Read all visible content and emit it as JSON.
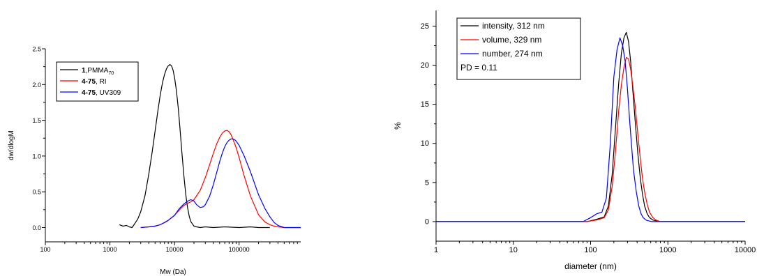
{
  "chart_data": [
    {
      "type": "line",
      "title": "",
      "xlabel": "Mw (Da)",
      "ylabel": "dw/dlogM",
      "xscale": "log",
      "xlim": [
        100,
        900000
      ],
      "ylim": [
        -0.2,
        2.5
      ],
      "x_ticks": [
        "100",
        "1000",
        "10000",
        "100000"
      ],
      "y_ticks": [
        "0.0",
        "0.5",
        "1.0",
        "1.5",
        "2.0",
        "2.5"
      ],
      "grid": false,
      "legend_position": "top-left",
      "legend": [
        {
          "bold": "1",
          "text": ",PMMA",
          "sub": "70"
        },
        {
          "bold": "4-75",
          "text": ", RI",
          "sub": ""
        },
        {
          "bold": "4-75",
          "text": ", UV309",
          "sub": ""
        }
      ],
      "series": [
        {
          "color": "#000000",
          "x": [
            1400,
            1600,
            1800,
            2000,
            2200,
            2400,
            2700,
            3000,
            3500,
            4000,
            4500,
            5000,
            5500,
            6000,
            6500,
            7000,
            7500,
            8000,
            8500,
            9000,
            9500,
            10000,
            10500,
            11000,
            11500,
            12000,
            12500,
            13000,
            14000,
            15000,
            16000,
            17000,
            18000,
            20000,
            22000,
            25000,
            30000,
            40000,
            60000,
            100000,
            150000,
            200000,
            300000
          ],
          "y": [
            0.04,
            0.02,
            0.03,
            0.01,
            0.0,
            0.05,
            0.12,
            0.22,
            0.45,
            0.75,
            1.05,
            1.35,
            1.62,
            1.85,
            2.02,
            2.14,
            2.22,
            2.26,
            2.28,
            2.26,
            2.2,
            2.1,
            1.97,
            1.82,
            1.65,
            1.45,
            1.25,
            1.05,
            0.72,
            0.45,
            0.27,
            0.15,
            0.08,
            0.02,
            0.01,
            0.0,
            0.01,
            0.0,
            0.01,
            0.0,
            0.01,
            0.0,
            0.0
          ]
        },
        {
          "color": "#ff0000",
          "x": [
            3000,
            4000,
            5000,
            6000,
            7000,
            8000,
            10000,
            12000,
            14000,
            16000,
            18000,
            20000,
            25000,
            30000,
            35000,
            40000,
            45000,
            50000,
            55000,
            60000,
            65000,
            70000,
            75000,
            80000,
            90000,
            100000,
            120000,
            150000,
            200000,
            250000,
            300000,
            350000,
            400000,
            500000,
            700000,
            900000
          ],
          "y": [
            0.0,
            0.01,
            0.02,
            0.04,
            0.07,
            0.1,
            0.17,
            0.25,
            0.31,
            0.34,
            0.36,
            0.39,
            0.52,
            0.7,
            0.88,
            1.04,
            1.17,
            1.26,
            1.32,
            1.35,
            1.36,
            1.34,
            1.3,
            1.24,
            1.12,
            0.98,
            0.72,
            0.44,
            0.18,
            0.08,
            0.04,
            0.02,
            0.01,
            0.0,
            0.0,
            0.0
          ]
        },
        {
          "color": "#0000ff",
          "x": [
            3000,
            4000,
            5000,
            6000,
            7000,
            8000,
            10000,
            12000,
            14000,
            16000,
            18000,
            20000,
            22000,
            25000,
            28000,
            30000,
            35000,
            40000,
            45000,
            50000,
            55000,
            60000,
            65000,
            70000,
            75000,
            80000,
            85000,
            90000,
            100000,
            120000,
            150000,
            200000,
            250000,
            300000,
            350000,
            400000,
            500000,
            700000,
            900000
          ],
          "y": [
            0.0,
            0.01,
            0.02,
            0.04,
            0.07,
            0.1,
            0.17,
            0.27,
            0.33,
            0.37,
            0.39,
            0.37,
            0.32,
            0.28,
            0.29,
            0.32,
            0.44,
            0.6,
            0.77,
            0.92,
            1.04,
            1.13,
            1.19,
            1.22,
            1.24,
            1.24,
            1.23,
            1.21,
            1.15,
            1.0,
            0.78,
            0.46,
            0.27,
            0.15,
            0.07,
            0.03,
            0.0,
            0.0,
            0.0
          ]
        }
      ]
    },
    {
      "type": "line",
      "title": "",
      "xlabel": "diameter (nm)",
      "ylabel": "%",
      "xscale": "log",
      "xlim": [
        1,
        10000
      ],
      "ylim": [
        -2.5,
        27
      ],
      "x_ticks": [
        "1",
        "10",
        "100",
        "1000",
        "10000"
      ],
      "y_ticks": [
        "0",
        "5",
        "10",
        "15",
        "20",
        "25"
      ],
      "grid": false,
      "legend_position": "top-left",
      "legend": [
        {
          "text": "intensity, 312 nm"
        },
        {
          "text": "volume, 329 nm"
        },
        {
          "text": "number, 274 nm"
        }
      ],
      "legend_note": "PD = 0.11",
      "series": [
        {
          "color": "#000000",
          "x": [
            1,
            90,
            120,
            150,
            170,
            190,
            210,
            230,
            250,
            270,
            290,
            310,
            330,
            350,
            380,
            410,
            440,
            470,
            500,
            540,
            580,
            640,
            700,
            800,
            1000,
            10000
          ],
          "y": [
            0,
            0,
            0.3,
            0.6,
            2.0,
            6.0,
            12.0,
            17.5,
            21.5,
            23.5,
            24.2,
            23.0,
            20.5,
            17.0,
            12.5,
            8.5,
            5.5,
            3.5,
            2.0,
            1.0,
            0.5,
            0.2,
            0.1,
            0,
            0,
            0
          ]
        },
        {
          "color": "#ff0000",
          "x": [
            1,
            90,
            120,
            150,
            170,
            190,
            210,
            230,
            250,
            270,
            290,
            310,
            330,
            350,
            380,
            410,
            440,
            470,
            500,
            540,
            580,
            640,
            700,
            800,
            1000,
            10000
          ],
          "y": [
            0,
            0,
            0.2,
            0.5,
            1.5,
            4.5,
            9.0,
            14.0,
            17.5,
            19.7,
            21.0,
            20.8,
            19.5,
            17.5,
            14.5,
            11.0,
            8.0,
            5.5,
            3.8,
            2.2,
            1.2,
            0.5,
            0.2,
            0,
            0,
            0
          ]
        },
        {
          "color": "#0000ff",
          "x": [
            1,
            80,
            100,
            120,
            140,
            160,
            180,
            200,
            220,
            240,
            260,
            280,
            300,
            320,
            340,
            360,
            390,
            420,
            450,
            480,
            520,
            560,
            620,
            700,
            1000,
            10000
          ],
          "y": [
            0,
            0,
            0.5,
            1.0,
            1.2,
            3.0,
            10.0,
            18.5,
            22.0,
            23.5,
            22.5,
            20.5,
            17.0,
            13.0,
            9.5,
            6.5,
            3.8,
            2.0,
            1.0,
            0.5,
            0.2,
            0.1,
            0,
            0,
            0,
            0
          ]
        }
      ]
    }
  ]
}
